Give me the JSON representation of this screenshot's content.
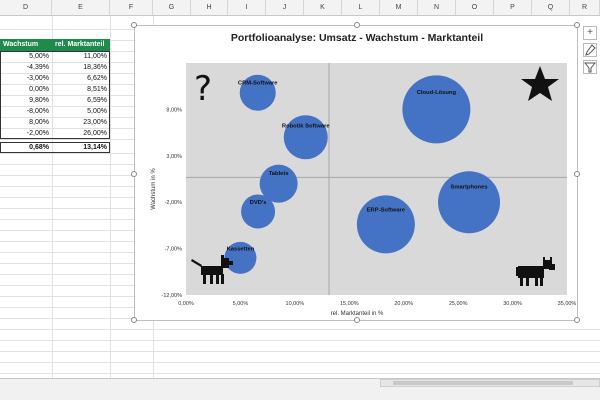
{
  "columns": [
    "D",
    "E",
    "F",
    "G",
    "H",
    "I",
    "J",
    "K",
    "L",
    "M",
    "N",
    "O",
    "P",
    "Q",
    "R"
  ],
  "table": {
    "headers": [
      "Wachstum",
      "rel. Marktanteil"
    ],
    "rows": [
      [
        "5,00%",
        "11,00%"
      ],
      [
        "-4,39%",
        "18,36%"
      ],
      [
        "-3,00%",
        "6,62%"
      ],
      [
        "0,00%",
        "8,51%"
      ],
      [
        "9,80%",
        "6,59%"
      ],
      [
        "-8,00%",
        "5,00%"
      ],
      [
        "8,00%",
        "23,00%"
      ],
      [
        "-2,00%",
        "26,00%"
      ]
    ],
    "totals": [
      "0,68%",
      "13,14%"
    ]
  },
  "chart_data": {
    "type": "scatter",
    "title": "Portfolioanalyse: Umsatz - Wachstum - Marktanteil",
    "xlabel": "rel. Marktanteil in %",
    "ylabel": "Wachstum in %",
    "xlim": [
      0,
      35
    ],
    "ylim": [
      -12,
      13
    ],
    "x_ticks": [
      {
        "v": 0,
        "label": "0,00%"
      },
      {
        "v": 5,
        "label": "5,00%"
      },
      {
        "v": 10,
        "label": "10,00%"
      },
      {
        "v": 15,
        "label": "15,00%"
      },
      {
        "v": 20,
        "label": "20,00%"
      },
      {
        "v": 25,
        "label": "25,00%"
      },
      {
        "v": 30,
        "label": "30,00%"
      },
      {
        "v": 35,
        "label": "35,00%"
      }
    ],
    "y_ticks": [
      {
        "v": 8,
        "label": "8,00%"
      },
      {
        "v": 3,
        "label": "3,00%"
      },
      {
        "v": -2,
        "label": "-2,00%"
      },
      {
        "v": -7,
        "label": "-7,00%"
      },
      {
        "v": -12,
        "label": "-12,00%"
      }
    ],
    "dividers": {
      "x": 13.14,
      "y": 0.68
    },
    "bubble_color": "#4472c4",
    "points": [
      {
        "name": "CRM-Software",
        "x": 6.59,
        "y": 9.8,
        "size": 18
      },
      {
        "name": "Cloud-Lösung",
        "x": 23.0,
        "y": 8.0,
        "size": 34
      },
      {
        "name": "Robotik Software",
        "x": 11.0,
        "y": 5.0,
        "size": 22
      },
      {
        "name": "Tablets",
        "x": 8.51,
        "y": 0.0,
        "size": 19
      },
      {
        "name": "Smartphones",
        "x": 26.0,
        "y": -2.0,
        "size": 31
      },
      {
        "name": "DVD's",
        "x": 6.62,
        "y": -3.0,
        "size": 17
      },
      {
        "name": "ERP-Software",
        "x": 18.36,
        "y": -4.39,
        "size": 29
      },
      {
        "name": "Kassetten",
        "x": 5.0,
        "y": -8.0,
        "size": 16
      }
    ],
    "quadrant_icons": [
      "question-mark",
      "star",
      "dog",
      "cow"
    ]
  }
}
